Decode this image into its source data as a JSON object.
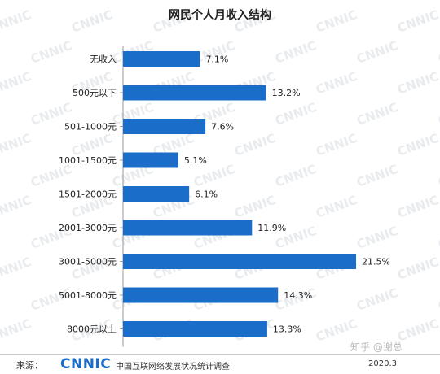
{
  "chart_data": {
    "type": "bar",
    "orientation": "horizontal",
    "title": "网民个人月收入结构",
    "categories": [
      "无收入",
      "500元以下",
      "501-1000元",
      "1001-1500元",
      "1501-2000元",
      "2001-3000元",
      "3001-5000元",
      "5001-8000元",
      "8000元以上"
    ],
    "values": [
      7.1,
      13.2,
      7.6,
      5.1,
      6.1,
      11.9,
      21.5,
      14.3,
      13.3
    ],
    "data_labels": [
      "7.1%",
      "13.2%",
      "7.6%",
      "5.1%",
      "6.1%",
      "11.9%",
      "21.5%",
      "14.3%",
      "13.3%"
    ],
    "unit": "%",
    "xlim": [
      0,
      21.5
    ],
    "grid": false,
    "bar_color": "#1a6dc8"
  },
  "footer": {
    "source_label": "来源：",
    "logo": "CNNIC",
    "org": "中国互联网络发展状况统计调查",
    "date": "2020.3"
  },
  "watermark": {
    "text": "CNNIC",
    "credit": "知乎 @谢总"
  }
}
